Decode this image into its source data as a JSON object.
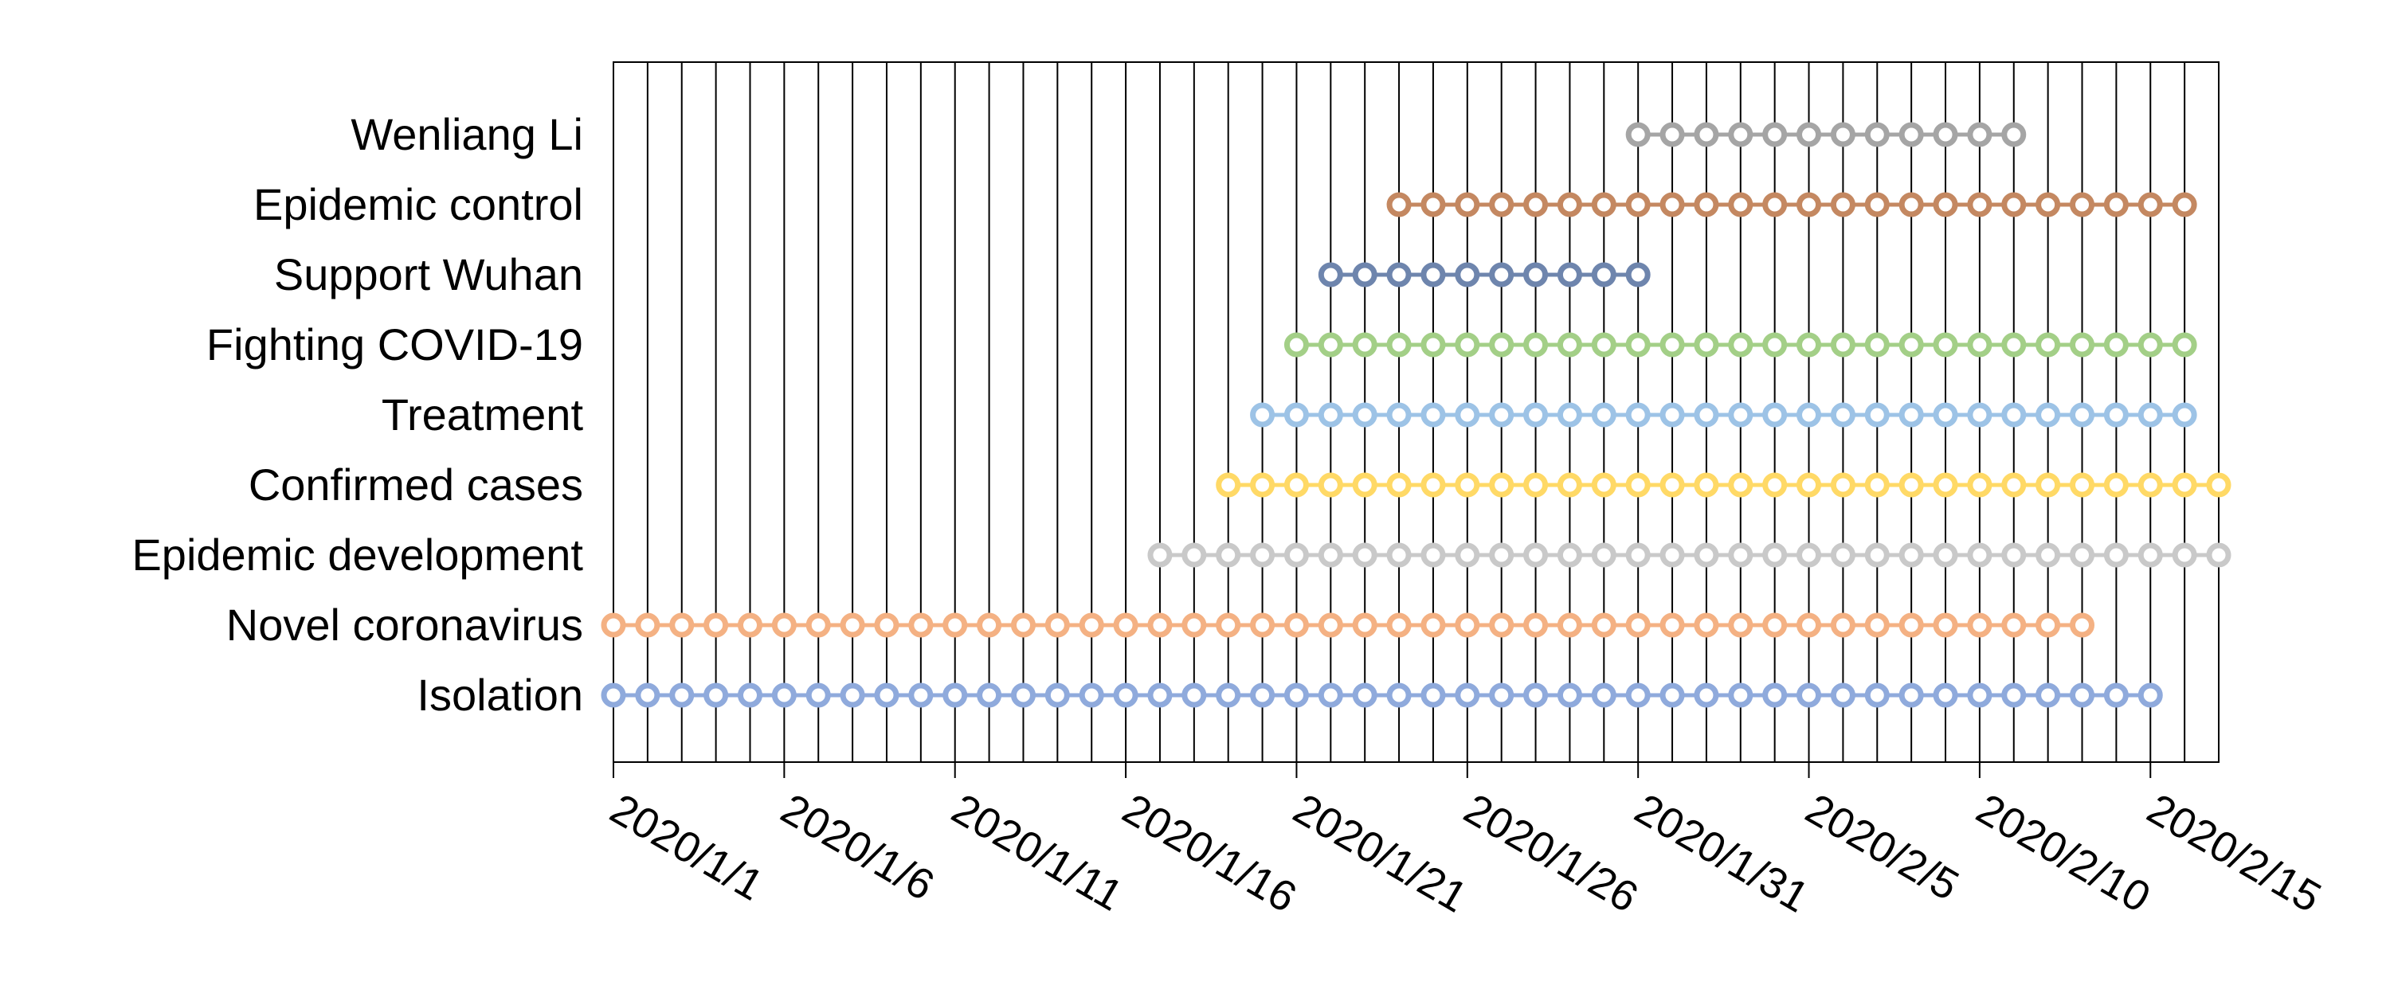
{
  "chart_data": {
    "type": "timeline",
    "title": "",
    "xlabel": "",
    "ylabel": "",
    "x_axis": {
      "start": "2020/1/1",
      "end": "2020/2/17",
      "tick_labels": [
        "2020/1/1",
        "2020/1/6",
        "2020/1/11",
        "2020/1/16",
        "2020/1/21",
        "2020/1/26",
        "2020/1/31",
        "2020/2/5",
        "2020/2/10",
        "2020/2/15"
      ],
      "vertical_grid": "daily"
    },
    "legend": "none",
    "series": [
      {
        "name": "Wenliang Li",
        "start": "2020/1/31",
        "end": "2020/2/11",
        "color": "#a5a5a5"
      },
      {
        "name": "Epidemic control",
        "start": "2020/1/24",
        "end": "2020/2/16",
        "color": "#c48861"
      },
      {
        "name": "Support Wuhan",
        "start": "2020/1/22",
        "end": "2020/1/31",
        "color": "#6e85ad"
      },
      {
        "name": "Fighting COVID-19",
        "start": "2020/1/21",
        "end": "2020/2/16",
        "color": "#a3cf87"
      },
      {
        "name": "Treatment",
        "start": "2020/1/20",
        "end": "2020/2/16",
        "color": "#9dc3e6"
      },
      {
        "name": "Confirmed cases",
        "start": "2020/1/19",
        "end": "2020/2/17",
        "color": "#ffd966"
      },
      {
        "name": "Epidemic development",
        "start": "2020/1/17",
        "end": "2020/2/17",
        "color": "#c9c9c9"
      },
      {
        "name": "Novel coronavirus",
        "start": "2020/1/1",
        "end": "2020/2/13",
        "color": "#f4b183"
      },
      {
        "name": "Isolation",
        "start": "2020/1/1",
        "end": "2020/2/15",
        "color": "#8faadc"
      }
    ]
  }
}
